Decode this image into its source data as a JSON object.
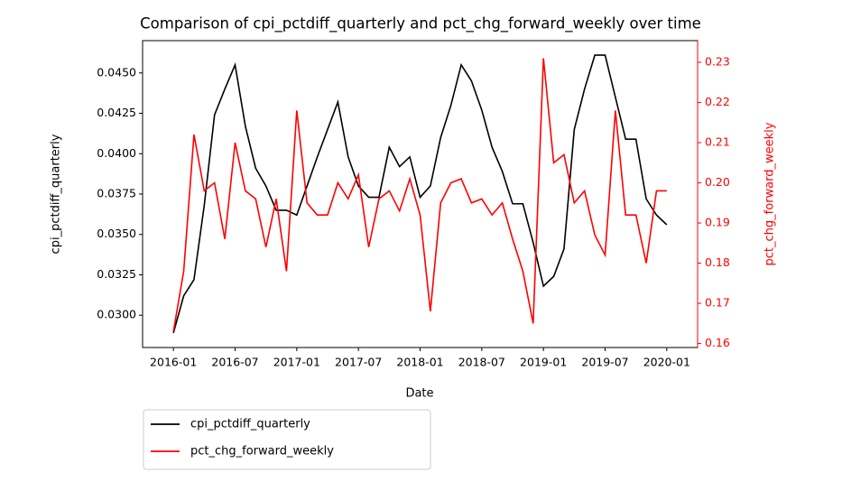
{
  "chart_data": {
    "type": "line",
    "title": "Comparison of cpi_pctdiff_quarterly and pct_chg_forward_weekly over time",
    "xlabel": "Date",
    "ylabel": "cpi_pctdiff_quarterly",
    "y2label": "pct_chg_forward_weekly",
    "x": [
      "2016-01",
      "2016-02",
      "2016-03",
      "2016-04",
      "2016-05",
      "2016-06",
      "2016-07",
      "2016-08",
      "2016-09",
      "2016-10",
      "2016-11",
      "2016-12",
      "2017-01",
      "2017-02",
      "2017-03",
      "2017-04",
      "2017-05",
      "2017-06",
      "2017-07",
      "2017-08",
      "2017-09",
      "2017-10",
      "2017-11",
      "2017-12",
      "2018-01",
      "2018-02",
      "2018-03",
      "2018-04",
      "2018-05",
      "2018-06",
      "2018-07",
      "2018-08",
      "2018-09",
      "2018-10",
      "2018-11",
      "2018-12",
      "2019-01",
      "2019-02",
      "2019-03",
      "2019-04",
      "2019-05",
      "2019-06",
      "2019-07",
      "2019-08",
      "2019-09",
      "2019-10",
      "2019-11",
      "2019-12",
      "2020-01"
    ],
    "series": [
      {
        "name": "cpi_pctdiff_quarterly",
        "color": "#000000",
        "axis": "y",
        "values": [
          0.0289,
          0.0312,
          0.0322,
          0.0368,
          0.0424,
          0.044,
          0.0455,
          0.0417,
          0.0391,
          0.038,
          0.0365,
          0.0365,
          0.0362,
          0.038,
          0.0398,
          0.0415,
          0.0432,
          0.0398,
          0.038,
          0.0373,
          0.0373,
          0.0404,
          0.0392,
          0.0398,
          0.0373,
          0.038,
          0.041,
          0.043,
          0.0455,
          0.0445,
          0.0427,
          0.0404,
          0.0389,
          0.0369,
          0.0369,
          0.0345,
          0.0318,
          0.0324,
          0.0341,
          0.0415,
          0.044,
          0.0461,
          0.0461,
          0.0435,
          0.0409,
          0.0409,
          0.0372,
          0.0362,
          0.0356
        ]
      },
      {
        "name": "pct_chg_forward_weekly",
        "color": "#ff0000",
        "axis": "y2",
        "values": [
          0.163,
          0.178,
          0.212,
          0.198,
          0.2,
          0.186,
          0.21,
          0.198,
          0.196,
          0.184,
          0.196,
          0.178,
          0.218,
          0.195,
          0.192,
          0.192,
          0.2,
          0.196,
          0.202,
          0.184,
          0.196,
          0.198,
          0.193,
          0.201,
          0.192,
          0.168,
          0.195,
          0.2,
          0.201,
          0.195,
          0.196,
          0.192,
          0.195,
          0.186,
          0.178,
          0.165,
          0.231,
          0.205,
          0.207,
          0.195,
          0.198,
          0.187,
          0.182,
          0.218,
          0.192,
          0.192,
          0.18,
          0.198,
          0.198
        ]
      }
    ],
    "xlim": [
      "2015-10",
      "2020-04"
    ],
    "xticks": [
      "2016-01",
      "2016-07",
      "2017-01",
      "2017-07",
      "2018-01",
      "2018-07",
      "2019-01",
      "2019-07",
      "2020-01"
    ],
    "ylim": [
      0.028,
      0.047
    ],
    "yticks": [
      {
        "value": 0.03,
        "label": "0.0300"
      },
      0.0325,
      {
        "value": 0.035,
        "label": "0.0350"
      },
      0.0375,
      {
        "value": 0.04,
        "label": "0.0400"
      },
      0.0425,
      {
        "value": 0.045,
        "label": "0.0450"
      }
    ],
    "y2lim": [
      0.159,
      0.2354
    ],
    "y2ticks": [
      0.16,
      0.17,
      0.18,
      0.19,
      {
        "value": 0.2,
        "label": "0.20"
      },
      0.21,
      0.22,
      0.23
    ],
    "y2color": "#ff0000",
    "legend": "below-left"
  }
}
